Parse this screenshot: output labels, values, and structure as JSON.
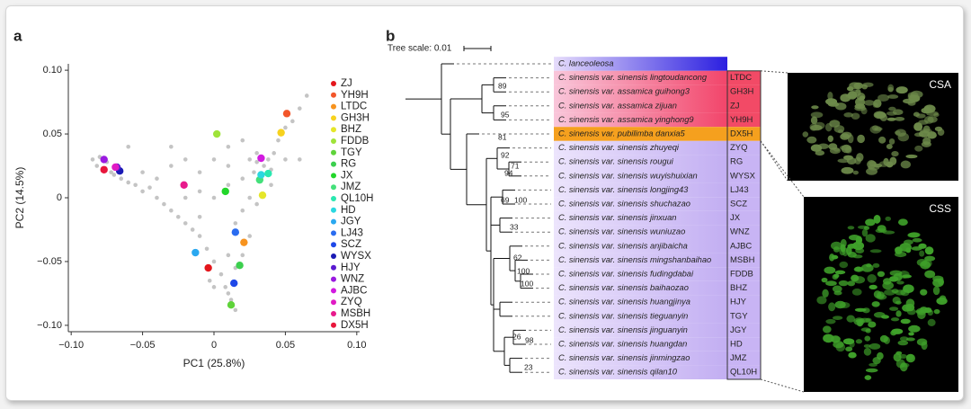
{
  "chart_data": {
    "type": "scatter",
    "panel_label": "a",
    "xlabel": "PC1 (25.8%)",
    "ylabel": "PC2 (14.5%)",
    "xlim": [
      -0.102,
      0.102
    ],
    "ylim": [
      -0.105,
      0.105
    ],
    "xticks": [
      {
        "value": -0.1,
        "label": "−0.10"
      },
      {
        "value": -0.05,
        "label": "−0.05"
      },
      0,
      0.05,
      {
        "value": 0.1,
        "label": "0.10"
      }
    ],
    "yticks": [
      {
        "value": -0.1,
        "label": "−0.10"
      },
      {
        "value": -0.05,
        "label": "−0.05"
      },
      0,
      0.05,
      {
        "value": 0.1,
        "label": "0.10"
      }
    ],
    "grid": false,
    "series": [
      {
        "color": "#c4c4c4",
        "x": [
          -0.085,
          -0.082,
          -0.08,
          -0.075,
          -0.072,
          -0.07,
          -0.065,
          -0.06,
          -0.055,
          -0.05,
          -0.045,
          -0.04,
          -0.035,
          -0.03,
          -0.025,
          -0.02,
          -0.015,
          -0.01,
          -0.005,
          0.0,
          0.005,
          0.008,
          0.01,
          0.012,
          0.015,
          0.0,
          -0.003,
          -0.05,
          -0.04,
          -0.03,
          -0.02,
          -0.01,
          0.0,
          0.01,
          0.02,
          0.0,
          -0.01,
          0.01,
          0.02,
          0.015,
          0.025,
          0.02,
          0.015,
          0.01,
          -0.02,
          -0.01,
          0.025,
          0.03,
          0.035,
          0.04,
          0.028,
          0.033,
          0.038,
          0.042,
          0.03,
          0.045,
          0.05,
          0.055,
          0.06,
          0.065,
          0.025,
          0.03,
          0.02,
          0.04,
          0.01,
          -0.03,
          -0.06,
          0.05,
          0.06
        ],
        "y": [
          0.03,
          0.025,
          0.032,
          0.028,
          0.02,
          0.018,
          0.015,
          0.012,
          0.01,
          0.005,
          0.008,
          0.0,
          -0.005,
          -0.01,
          -0.015,
          -0.02,
          -0.025,
          -0.03,
          -0.04,
          -0.05,
          -0.06,
          -0.07,
          -0.075,
          -0.08,
          -0.088,
          -0.07,
          -0.065,
          0.02,
          0.015,
          0.025,
          0.03,
          0.02,
          0.03,
          0.04,
          0.045,
          0.0,
          0.005,
          0.01,
          -0.01,
          -0.02,
          -0.03,
          -0.045,
          -0.055,
          -0.045,
          0.0,
          -0.015,
          0.03,
          0.028,
          0.025,
          0.022,
          0.02,
          0.015,
          0.03,
          0.035,
          0.035,
          0.045,
          0.055,
          0.06,
          0.07,
          0.08,
          0.0,
          -0.005,
          0.015,
          0.01,
          0.025,
          0.04,
          0.04,
          0.03,
          0.03
        ]
      },
      {
        "name": "ZJ",
        "color": "#e4161c",
        "x": [
          -0.004
        ],
        "y": [
          -0.055
        ]
      },
      {
        "name": "YH9H",
        "color": "#f2562a",
        "x": [
          0.051
        ],
        "y": [
          0.066
        ]
      },
      {
        "name": "LTDC",
        "color": "#f7931e",
        "x": [
          0.021
        ],
        "y": [
          -0.035
        ]
      },
      {
        "name": "GH3H",
        "color": "#f7d21e",
        "x": [
          0.047
        ],
        "y": [
          0.051
        ]
      },
      {
        "name": "BHZ",
        "color": "#e5e62a",
        "x": [
          0.034
        ],
        "y": [
          0.002
        ]
      },
      {
        "name": "FDDB",
        "color": "#9fe33a",
        "x": [
          0.002
        ],
        "y": [
          0.05
        ]
      },
      {
        "name": "TGY",
        "color": "#5fd33a",
        "x": [
          0.012
        ],
        "y": [
          -0.084
        ]
      },
      {
        "name": "RG",
        "color": "#3ccf4e",
        "x": [
          0.018
        ],
        "y": [
          -0.053
        ]
      },
      {
        "name": "JX",
        "color": "#22d62a",
        "x": [
          0.008
        ],
        "y": [
          0.005
        ]
      },
      {
        "name": "JMZ",
        "color": "#44e07a",
        "x": [
          0.032
        ],
        "y": [
          0.014
        ]
      },
      {
        "name": "QL10H",
        "color": "#2ae8b0",
        "x": [
          0.038
        ],
        "y": [
          0.019
        ]
      },
      {
        "name": "HD",
        "color": "#2ad8e0",
        "x": [
          0.033
        ],
        "y": [
          0.018
        ]
      },
      {
        "name": "JGY",
        "color": "#2aa8f0",
        "x": [
          -0.013
        ],
        "y": [
          -0.043
        ]
      },
      {
        "name": "LJ43",
        "color": "#2a6cf0",
        "x": [
          0.015
        ],
        "y": [
          -0.027
        ]
      },
      {
        "name": "SCZ",
        "color": "#1e48e8",
        "x": [
          0.014
        ],
        "y": [
          -0.067
        ]
      },
      {
        "name": "WYSX",
        "color": "#1a1ab4",
        "x": [
          -0.066
        ],
        "y": [
          0.021
        ]
      },
      {
        "name": "HJY",
        "color": "#5a1ad0",
        "x": [
          -0.068
        ],
        "y": [
          0.024
        ]
      },
      {
        "name": "WNZ",
        "color": "#9a1ae0",
        "x": [
          -0.077
        ],
        "y": [
          0.03
        ]
      },
      {
        "name": "AJBC",
        "color": "#d21ae0",
        "x": [
          0.033
        ],
        "y": [
          0.031
        ]
      },
      {
        "name": "ZYQ",
        "color": "#e01ac4",
        "x": [
          -0.069
        ],
        "y": [
          0.024
        ]
      },
      {
        "name": "MSBH",
        "color": "#e81a8c",
        "x": [
          -0.021
        ],
        "y": [
          0.01
        ]
      },
      {
        "name": "DX5H",
        "color": "#e8163c",
        "x": [
          -0.077
        ],
        "y": [
          0.022
        ]
      }
    ]
  },
  "tree": {
    "panel_label": "b",
    "scale_label": "Tree scale: 0.01",
    "leaves": [
      {
        "name": "C. lanceoleosa"
      },
      {
        "name": "C. sinensis var. sinensis lingtoudancong",
        "code": "LTDC"
      },
      {
        "name": "C. sinensis var. assamica guihong3",
        "code": "GH3H"
      },
      {
        "name": "C. sinensis var. assamica zijuan",
        "code": "ZJ"
      },
      {
        "name": "C. sinensis var. assamica yinghong9",
        "code": "YH9H"
      },
      {
        "name": "C. sinensis var. pubilimba danxia5",
        "code": "DX5H"
      },
      {
        "name": "C. sinensis var. sinensis zhuyeqi",
        "code": "ZYQ"
      },
      {
        "name": "C. sinensis var. sinensis rougui",
        "code": "RG"
      },
      {
        "name": "C. sinensis var. sinensis wuyishuixian",
        "code": "WYSX"
      },
      {
        "name": "C. sinensis var. sinensis longjing43",
        "code": "LJ43"
      },
      {
        "name": "C. sinensis var. sinensis shuchazao",
        "code": "SCZ"
      },
      {
        "name": "C. sinensis var. sinensis jinxuan",
        "code": "JX"
      },
      {
        "name": "C. sinensis var. sinensis wuniuzao",
        "code": "WNZ"
      },
      {
        "name": "C. sinensis var. sinensis anjibaicha",
        "code": "AJBC"
      },
      {
        "name": "C. sinensis var. sinensis mingshanbaihao",
        "code": "MSBH"
      },
      {
        "name": "C. sinensis var. sinensis fudingdabai",
        "code": "FDDB"
      },
      {
        "name": "C. sinensis var. sinensis baihaozao",
        "code": "BHZ"
      },
      {
        "name": "C. sinensis var. sinensis huangjinya",
        "code": "HJY"
      },
      {
        "name": "C. sinensis var. sinensis tieguanyin",
        "code": "TGY"
      },
      {
        "name": "C. sinensis var. sinensis jinguanyin",
        "code": "JGY"
      },
      {
        "name": "C. sinensis var. sinensis huangdan",
        "code": "HD"
      },
      {
        "name": "C. sinensis var. sinensis jinmingzao",
        "code": "JMZ"
      },
      {
        "name": "C. sinensis var. sinensis qilan10",
        "code": "QL10H"
      }
    ],
    "supports": [
      "89",
      "95",
      "81",
      "92",
      "71",
      "94",
      "69",
      "100",
      "33",
      "62",
      "100",
      "100",
      "26",
      "98",
      "23"
    ]
  },
  "photos": [
    {
      "label": "CSA"
    },
    {
      "label": "CSS"
    }
  ]
}
